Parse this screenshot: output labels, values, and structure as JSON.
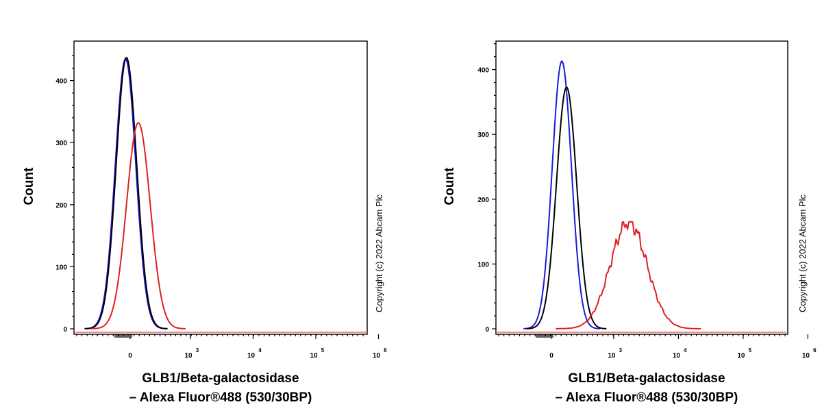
{
  "chart_data": [
    {
      "type": "histogram",
      "xscale": "biexponential",
      "ylabel": "Count",
      "xlabel_line1": "GLB1/Beta-galactosidase",
      "xlabel_line2": "– Alexa Fluor®488 (530/30BP)",
      "copyright": "Copyright (c) 2022 Abcam Plc",
      "ylim": [
        0,
        470
      ],
      "yticks": [
        0,
        100,
        200,
        300,
        400
      ],
      "xticks": [
        {
          "value": 0,
          "base": "0",
          "exp": ""
        },
        {
          "value": 1000,
          "base": "10",
          "exp": "3"
        },
        {
          "value": 10000,
          "base": "10",
          "exp": "4"
        },
        {
          "value": 100000,
          "base": "10",
          "exp": "5"
        },
        {
          "value": 1000000,
          "base": "10",
          "exp": "6"
        }
      ],
      "series": [
        {
          "color": "#1a1adc",
          "peak_x": -50,
          "peak_count": 435,
          "width": 1.0
        },
        {
          "color": "#000000",
          "peak_x": -40,
          "peak_count": 437,
          "width": 1.0
        },
        {
          "color": "#e02020",
          "peak_x": 90,
          "peak_count": 332,
          "width": 1.15
        }
      ]
    },
    {
      "type": "histogram",
      "xscale": "biexponential",
      "ylabel": "Count",
      "xlabel_line1": "GLB1/Beta-galactosidase",
      "xlabel_line2": "– Alexa Fluor®488 (530/30BP)",
      "copyright": "Copyright (c) 2022 Abcam Plc",
      "ylim": [
        0,
        450
      ],
      "yticks": [
        0,
        100,
        200,
        300,
        400
      ],
      "xticks": [
        {
          "value": 0,
          "base": "0",
          "exp": ""
        },
        {
          "value": 1000,
          "base": "10",
          "exp": "3"
        },
        {
          "value": 10000,
          "base": "10",
          "exp": "4"
        },
        {
          "value": 100000,
          "base": "10",
          "exp": "5"
        },
        {
          "value": 1000000,
          "base": "10",
          "exp": "6"
        }
      ],
      "series": [
        {
          "color": "#1a1adc",
          "peak_x": 110,
          "peak_count": 413,
          "width": 1.0
        },
        {
          "color": "#000000",
          "peak_x": 160,
          "peak_count": 373,
          "width": 1.05
        },
        {
          "color": "#e02020",
          "peak_x": 1700,
          "peak_count": 165,
          "width": 1.9
        }
      ]
    }
  ]
}
